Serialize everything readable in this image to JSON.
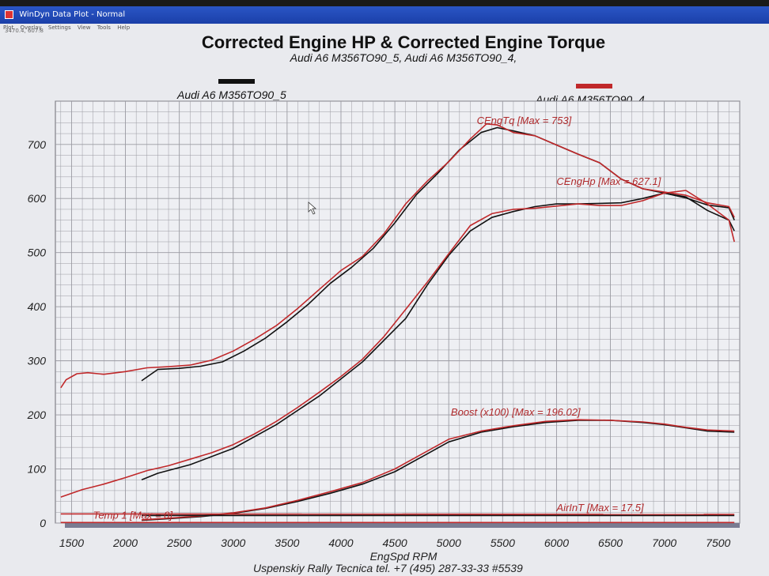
{
  "window": {
    "title": "WinDyn Data Plot - Normal",
    "menu": [
      "Plot",
      "Overlay",
      "Settings",
      "View",
      "Tools",
      "Help"
    ],
    "coords": "3470.4, 607.8"
  },
  "colors": {
    "black_run": "#111111",
    "red_run": "#c0282a",
    "grid": "#9a9aa2",
    "plot_bg": "#eeeff3"
  },
  "footer": "Uspenskiy Rally Tecnica   tel. +7 (495) 287-33-33 #5539",
  "chart_data": {
    "type": "line",
    "title": "Corrected Engine HP & Corrected Engine Torque",
    "subtitle": "Audi A6 M356TO90_5, Audi A6 M356TO90_4,",
    "xlabel": "EngSpd  RPM",
    "ylabel": "",
    "xlim": [
      1350,
      7700
    ],
    "ylim": [
      0,
      780
    ],
    "xticks": [
      1500,
      2000,
      2500,
      3000,
      3500,
      4000,
      4500,
      5000,
      5500,
      6000,
      6500,
      7000,
      7500
    ],
    "yticks": [
      0,
      100,
      200,
      300,
      400,
      500,
      600,
      700
    ],
    "grid": true,
    "legend": [
      {
        "name": "Audi A6 M356TO90_5",
        "color": "#111111"
      },
      {
        "name": "Audi A6 M356TO90_4",
        "color": "#c0282a"
      }
    ],
    "annotations": [
      {
        "text": "CEngTq [Max = 753]",
        "x": 5260,
        "y": 738
      },
      {
        "text": "CEngHp [Max = 627.1]",
        "x": 6000,
        "y": 625
      },
      {
        "text": "Boost (x100) [Max = 196.02]",
        "x": 5020,
        "y": 199
      },
      {
        "text": "AirInT [Max = 17.5]",
        "x": 6000,
        "y": 22
      },
      {
        "text": "Temp 1 [Max = 0]",
        "x": 1700,
        "y": 8
      }
    ],
    "series": [
      {
        "name": "Audi A6 M356TO90_5",
        "channel": "CEngTq",
        "color": "#111111",
        "x": [
          2150,
          2300,
          2500,
          2700,
          2900,
          3100,
          3300,
          3500,
          3700,
          3900,
          4100,
          4300,
          4500,
          4700,
          4900,
          5100,
          5300,
          5450,
          5600,
          5800,
          6000,
          6200,
          6400,
          6600,
          6800,
          7000,
          7200,
          7400,
          7600,
          7650
        ],
        "y": [
          263,
          284,
          286,
          290,
          298,
          318,
          342,
          372,
          405,
          443,
          473,
          508,
          555,
          607,
          647,
          690,
          722,
          731,
          725,
          716,
          699,
          682,
          666,
          636,
          618,
          610,
          601,
          588,
          583,
          560
        ]
      },
      {
        "name": "Audi A6 M356TO90_4",
        "channel": "CEngTq",
        "color": "#c0282a",
        "x": [
          1400,
          1450,
          1550,
          1650,
          1800,
          2000,
          2200,
          2400,
          2600,
          2800,
          3000,
          3200,
          3400,
          3600,
          3800,
          4000,
          4200,
          4400,
          4600,
          4800,
          5000,
          5200,
          5350,
          5450,
          5600,
          5800,
          6000,
          6200,
          6400,
          6600,
          6800,
          7000,
          7200,
          7400,
          7600,
          7650
        ],
        "y": [
          250,
          265,
          276,
          278,
          275,
          280,
          287,
          289,
          292,
          301,
          318,
          340,
          365,
          397,
          432,
          467,
          493,
          535,
          590,
          632,
          668,
          710,
          738,
          736,
          722,
          716,
          699,
          682,
          666,
          636,
          618,
          612,
          606,
          592,
          585,
          565
        ]
      },
      {
        "name": "Audi A6 M356TO90_5",
        "channel": "CEngHp",
        "color": "#111111",
        "x": [
          2150,
          2300,
          2600,
          3000,
          3400,
          3800,
          4200,
          4600,
          4800,
          5000,
          5200,
          5400,
          5600,
          5800,
          6000,
          6200,
          6400,
          6600,
          6800,
          7000,
          7200,
          7400,
          7600,
          7650
        ],
        "y": [
          80,
          92,
          108,
          138,
          182,
          235,
          298,
          378,
          440,
          495,
          540,
          565,
          576,
          585,
          590,
          590,
          591,
          592,
          600,
          610,
          603,
          578,
          560,
          540
        ]
      },
      {
        "name": "Audi A6 M356TO90_4",
        "channel": "CEngHp",
        "color": "#c0282a",
        "x": [
          1400,
          1600,
          1800,
          2000,
          2200,
          2400,
          2600,
          2800,
          3000,
          3200,
          3400,
          3600,
          3800,
          4000,
          4200,
          4400,
          4600,
          4800,
          5000,
          5200,
          5400,
          5600,
          5800,
          6000,
          6200,
          6400,
          6600,
          6800,
          7000,
          7200,
          7400,
          7600,
          7650
        ],
        "y": [
          48,
          62,
          72,
          84,
          97,
          106,
          118,
          130,
          145,
          165,
          188,
          214,
          242,
          271,
          303,
          345,
          395,
          445,
          498,
          550,
          572,
          580,
          582,
          586,
          590,
          587,
          587,
          596,
          610,
          615,
          590,
          560,
          520
        ]
      },
      {
        "name": "Audi A6 M356TO90_5",
        "channel": "Boost (x100)",
        "color": "#111111",
        "x": [
          2150,
          2400,
          2700,
          3000,
          3300,
          3600,
          3900,
          4200,
          4500,
          4800,
          5000,
          5300,
          5600,
          5900,
          6200,
          6500,
          6800,
          7000,
          7200,
          7400,
          7650
        ],
        "y": [
          5,
          8,
          12,
          18,
          27,
          40,
          55,
          72,
          95,
          128,
          150,
          168,
          178,
          186,
          190,
          190,
          186,
          182,
          176,
          170,
          168
        ]
      },
      {
        "name": "Audi A6 M356TO90_4",
        "channel": "Boost (x100)",
        "color": "#c0282a",
        "x": [
          2150,
          2400,
          2700,
          3000,
          3300,
          3600,
          3900,
          4200,
          4500,
          4800,
          5000,
          5300,
          5600,
          5900,
          6200,
          6500,
          6800,
          7000,
          7200,
          7400,
          7650
        ],
        "y": [
          6,
          9,
          13,
          19,
          28,
          42,
          58,
          75,
          100,
          133,
          155,
          170,
          180,
          188,
          191,
          190,
          187,
          183,
          177,
          172,
          170
        ]
      },
      {
        "name": "Audi A6 M356TO90_5",
        "channel": "AirInT",
        "color": "#111111",
        "x": [
          2150,
          7650
        ],
        "y": [
          14,
          14
        ]
      },
      {
        "name": "Audi A6 M356TO90_4",
        "channel": "AirInT",
        "color": "#c0282a",
        "x": [
          1400,
          7650
        ],
        "y": [
          17,
          16
        ]
      },
      {
        "name": "Audi A6 M356TO90_4",
        "channel": "Temp 1",
        "color": "#c0282a",
        "x": [
          1400,
          7650
        ],
        "y": [
          1,
          1
        ]
      }
    ]
  }
}
